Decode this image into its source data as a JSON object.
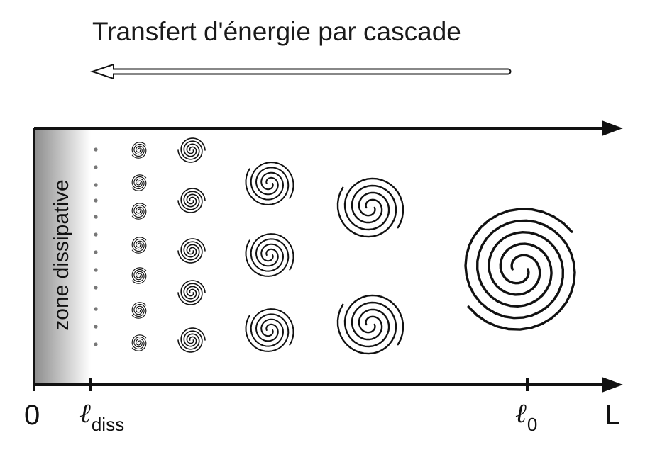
{
  "title": "Transfert d'énergie par cascade",
  "zone_label": "zone dissipative",
  "axis_labels": {
    "origin": "0",
    "ldiss_symbol": "ℓ",
    "ldiss_sub": "diss",
    "l0_symbol": "ℓ",
    "l0_sub": "0",
    "end": "L"
  },
  "colors": {
    "ink": "#111111",
    "zone_gradient_dark": "#8c8c8c",
    "zone_gradient_light": "#ffffff"
  }
}
